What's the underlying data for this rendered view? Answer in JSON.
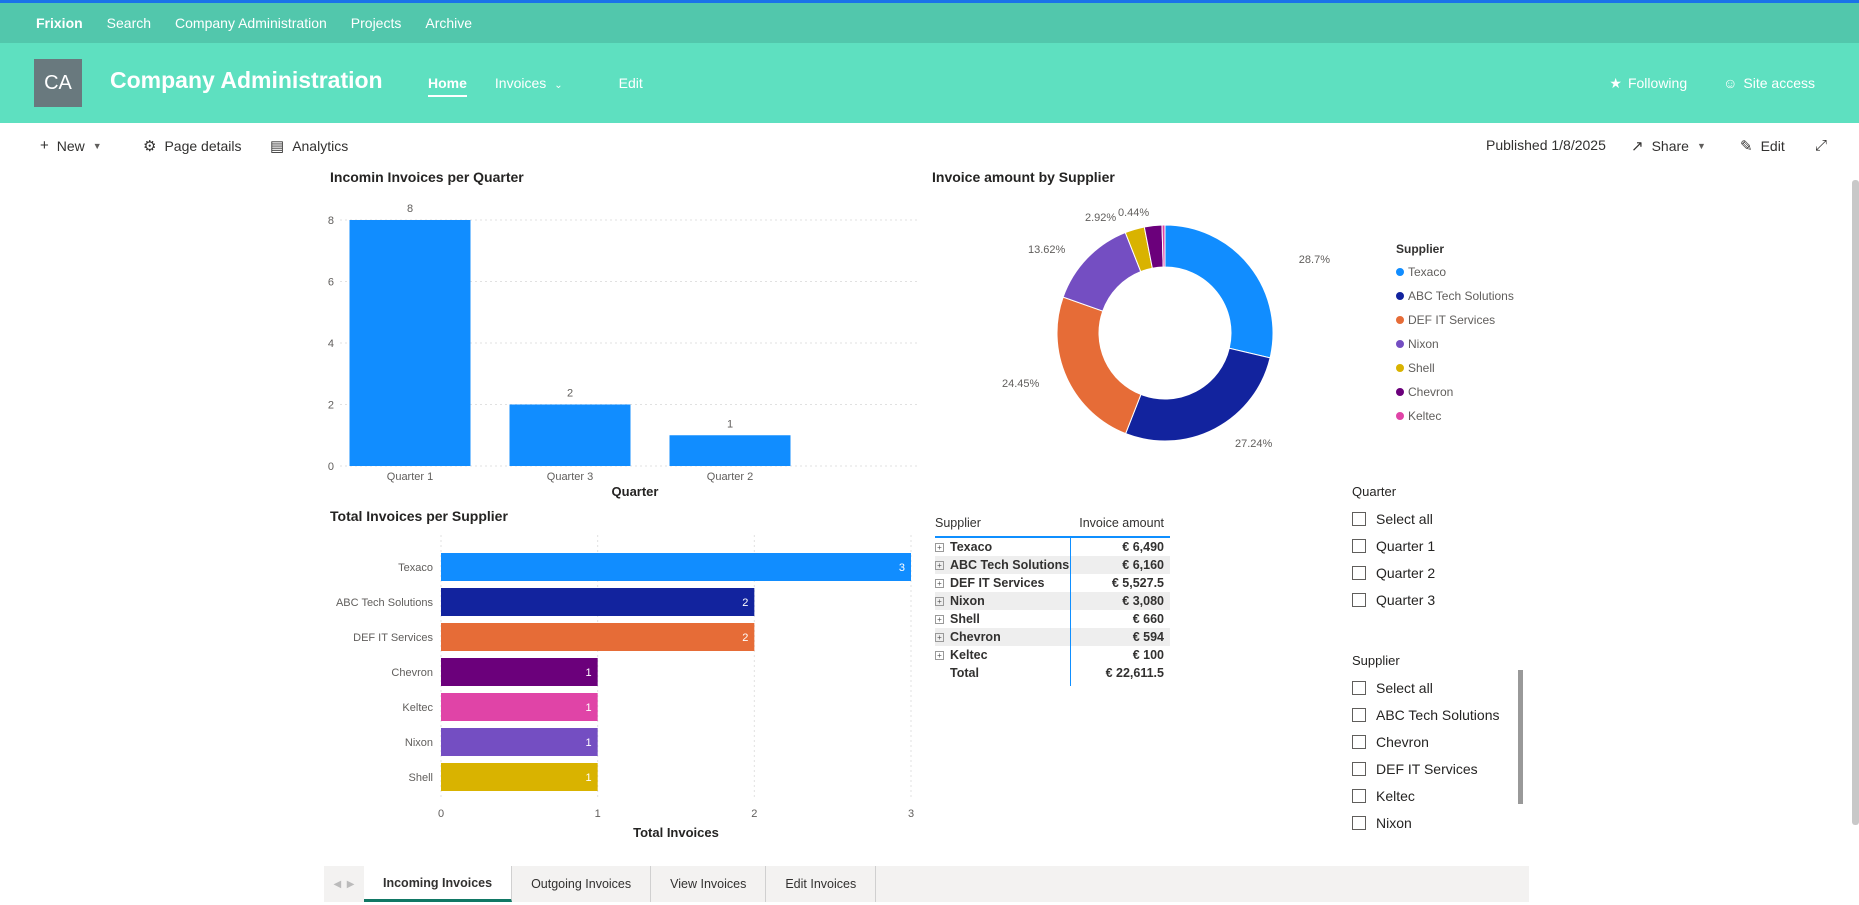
{
  "topbar": {
    "brand": "Frixion",
    "links": [
      "Search",
      "Company Administration",
      "Projects",
      "Archive"
    ]
  },
  "site": {
    "avatar": "CA",
    "title": "Company Administration",
    "nav": {
      "home": "Home",
      "invoices": "Invoices",
      "edit": "Edit"
    },
    "following": "Following",
    "site_access": "Site access"
  },
  "cmdbar": {
    "new": "New",
    "page_details": "Page details",
    "analytics": "Analytics",
    "published": "Published 1/8/2025",
    "share": "Share",
    "edit": "Edit"
  },
  "charts": {
    "bar_quarter": {
      "title": "Incomin Invoices per Quarter",
      "xlabel": "Quarter",
      "categories": [
        "Quarter 1",
        "Quarter 3",
        "Quarter 2"
      ],
      "values": [
        8,
        2,
        1
      ],
      "yticks": [
        0,
        2,
        4,
        6,
        8
      ],
      "color": "#118dff"
    },
    "donut": {
      "title": "Invoice amount by Supplier",
      "legend_title": "Supplier",
      "slices": [
        {
          "name": "Texaco",
          "pct": 28.7,
          "label": "28.7%",
          "color": "#118dff"
        },
        {
          "name": "ABC Tech Solutions",
          "pct": 27.24,
          "label": "27.24%",
          "color": "#12239e"
        },
        {
          "name": "DEF IT Services",
          "pct": 24.45,
          "label": "24.45%",
          "color": "#e66c37"
        },
        {
          "name": "Nixon",
          "pct": 13.62,
          "label": "13.62%",
          "color": "#744ec2"
        },
        {
          "name": "Shell",
          "pct": 2.92,
          "label": "2.92%",
          "color": "#d9b300"
        },
        {
          "name": "Chevron",
          "pct": 2.63,
          "label": "",
          "color": "#6b007b"
        },
        {
          "name": "Keltec",
          "pct": 0.44,
          "label": "0.44%",
          "color": "#e044a7"
        }
      ]
    },
    "hbar_supplier": {
      "title": "Total Invoices per Supplier",
      "xlabel": "Total Invoices",
      "categories": [
        "Texaco",
        "ABC Tech Solutions",
        "DEF IT Services",
        "Chevron",
        "Keltec",
        "Nixon",
        "Shell"
      ],
      "values": [
        3,
        2,
        2,
        1,
        1,
        1,
        1
      ],
      "colors": [
        "#118dff",
        "#12239e",
        "#e66c37",
        "#6b007b",
        "#e044a7",
        "#744ec2",
        "#d9b300"
      ],
      "xticks": [
        0,
        1,
        2,
        3
      ]
    }
  },
  "chart_data": [
    {
      "type": "bar",
      "title": "Incomin Invoices per Quarter",
      "xlabel": "Quarter",
      "categories": [
        "Quarter 1",
        "Quarter 3",
        "Quarter 2"
      ],
      "values": [
        8,
        2,
        1
      ],
      "ylim": [
        0,
        8
      ]
    },
    {
      "type": "pie",
      "title": "Invoice amount by Supplier",
      "categories": [
        "Texaco",
        "ABC Tech Solutions",
        "DEF IT Services",
        "Nixon",
        "Shell",
        "Chevron",
        "Keltec"
      ],
      "values": [
        28.7,
        27.24,
        24.45,
        13.62,
        2.92,
        2.63,
        0.44
      ]
    },
    {
      "type": "bar",
      "title": "Total Invoices per Supplier",
      "xlabel": "Total Invoices",
      "categories": [
        "Texaco",
        "ABC Tech Solutions",
        "DEF IT Services",
        "Chevron",
        "Keltec",
        "Nixon",
        "Shell"
      ],
      "values": [
        3,
        2,
        2,
        1,
        1,
        1,
        1
      ],
      "xlim": [
        0,
        3
      ]
    },
    {
      "type": "table",
      "columns": [
        "Supplier",
        "Invoice amount"
      ],
      "rows": [
        [
          "Texaco",
          "€ 6,490"
        ],
        [
          "ABC Tech Solutions",
          "€ 6,160"
        ],
        [
          "DEF IT Services",
          "€ 5,527.5"
        ],
        [
          "Nixon",
          "€ 3,080"
        ],
        [
          "Shell",
          "€ 660"
        ],
        [
          "Chevron",
          "€ 594"
        ],
        [
          "Keltec",
          "€ 100"
        ],
        [
          "Total",
          "€ 22,611.5"
        ]
      ]
    }
  ],
  "matrix": {
    "headers": [
      "Supplier",
      "Invoice amount"
    ],
    "rows": [
      {
        "supplier": "Texaco",
        "amount": "€ 6,490"
      },
      {
        "supplier": "ABC Tech Solutions",
        "amount": "€ 6,160"
      },
      {
        "supplier": "DEF IT Services",
        "amount": "€ 5,527.5"
      },
      {
        "supplier": "Nixon",
        "amount": "€ 3,080"
      },
      {
        "supplier": "Shell",
        "amount": "€ 660"
      },
      {
        "supplier": "Chevron",
        "amount": "€ 594"
      },
      {
        "supplier": "Keltec",
        "amount": "€ 100"
      }
    ],
    "total_label": "Total",
    "total_amount": "€ 22,611.5"
  },
  "slicer_quarter": {
    "title": "Quarter",
    "items": [
      "Select all",
      "Quarter 1",
      "Quarter 2",
      "Quarter 3"
    ]
  },
  "slicer_supplier": {
    "title": "Supplier",
    "items": [
      "Select all",
      "ABC Tech Solutions",
      "Chevron",
      "DEF IT Services",
      "Keltec",
      "Nixon"
    ]
  },
  "tabs": [
    "Incoming Invoices",
    "Outgoing Invoices",
    "View Invoices",
    "Edit Invoices"
  ]
}
